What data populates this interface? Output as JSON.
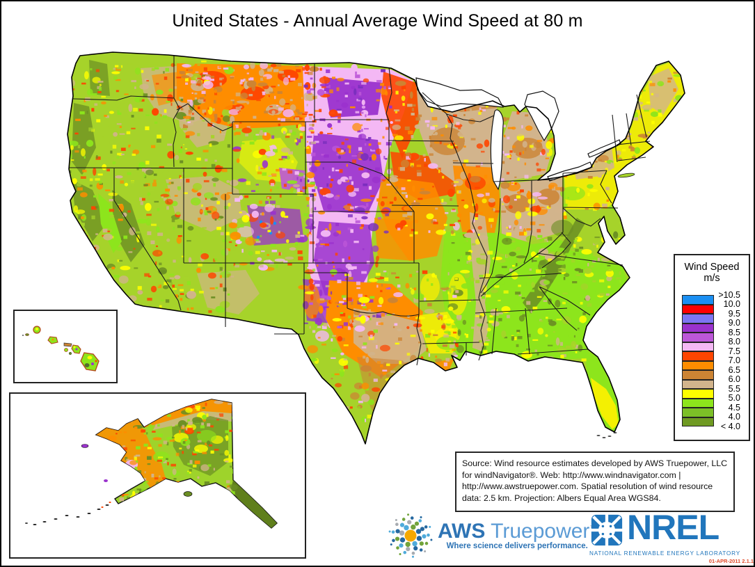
{
  "title": "United States - Annual Average Wind Speed at 80 m",
  "legend": {
    "title": "Wind Speed",
    "unit": "m/s",
    "boundary_labels": [
      ">10.5",
      "10.0",
      "9.5",
      "9.0",
      "8.5",
      "8.0",
      "7.5",
      "7.0",
      "6.5",
      "6.0",
      "5.5",
      "5.0",
      "4.5",
      "4.0",
      "< 4.0"
    ],
    "band_colors": [
      "#1B8FF2",
      "#FE0000",
      "#7D76F2",
      "#9A32CD",
      "#BC57D8",
      "#F4B8F4",
      "#FE4500",
      "#FE8D00",
      "#CC8434",
      "#D2B48C",
      "#FEFE00",
      "#8DE51C",
      "#7CBF27",
      "#6F9A22"
    ]
  },
  "source_text": "Source: Wind resource estimates developed by AWS Truepower, LLC for windNavigator®. Web: http://www.windnavigator.com | http://www.awstruepower.com. Spatial resolution of wind resource data: 2.5 km. Projection: Albers Equal Area WGS84.",
  "aws_logo": {
    "name": "AWS",
    "product": "Truepower",
    "trademark": "™",
    "tagline": "Where science delivers performance."
  },
  "nrel_logo": {
    "acronym": "NREL",
    "caption": "NATIONAL RENEWABLE ENERGY LABORATORY"
  },
  "stamp": "01-APR-2011 2.1.1",
  "colors": {
    "aws_blue": "#2E74B5",
    "aws_light_blue": "#5B9BD5",
    "nrel_blue": "#2176BC",
    "stamp_red": "#E04B2A"
  }
}
